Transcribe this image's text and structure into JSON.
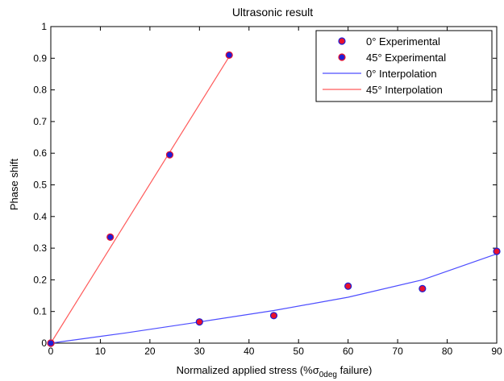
{
  "chart_data": {
    "type": "scatter",
    "title": "Ultrasonic result",
    "xlabel": {
      "prefix": "Normalized applied stress (%",
      "symbol": "σ",
      "subscript": "0deg",
      "suffix": " failure)"
    },
    "ylabel": "Phase shift",
    "xlim": [
      0,
      90
    ],
    "ylim": [
      0,
      1
    ],
    "xticks": [
      0,
      10,
      20,
      30,
      40,
      50,
      60,
      70,
      80,
      90
    ],
    "yticks": [
      0,
      0.1,
      0.2,
      0.3,
      0.4,
      0.5,
      0.6,
      0.7,
      0.8,
      0.9,
      1
    ],
    "grid": false,
    "legend_position": "top-right",
    "series": [
      {
        "name": "0° Experimental",
        "kind": "markers",
        "fill": "#e8112d",
        "edge": "#1f1fd6",
        "points": [
          [
            0,
            0
          ],
          [
            30,
            0.067
          ],
          [
            45,
            0.087
          ],
          [
            60,
            0.18
          ],
          [
            75,
            0.172
          ],
          [
            90,
            0.29
          ]
        ]
      },
      {
        "name": "45° Experimental",
        "kind": "markers",
        "fill": "#1f1fd6",
        "edge": "#e8112d",
        "points": [
          [
            0,
            0
          ],
          [
            12,
            0.335
          ],
          [
            24,
            0.595
          ],
          [
            36,
            0.91
          ]
        ]
      },
      {
        "name": "0° Interpolation",
        "kind": "line",
        "color": "#4d4dff",
        "points": [
          [
            0,
            0
          ],
          [
            15,
            0.032
          ],
          [
            30,
            0.067
          ],
          [
            45,
            0.103
          ],
          [
            60,
            0.145
          ],
          [
            75,
            0.2
          ],
          [
            90,
            0.282
          ]
        ]
      },
      {
        "name": "45° Interpolation",
        "kind": "line",
        "color": "#ff5a5a",
        "points": [
          [
            0,
            0
          ],
          [
            36,
            0.905
          ]
        ]
      }
    ]
  }
}
